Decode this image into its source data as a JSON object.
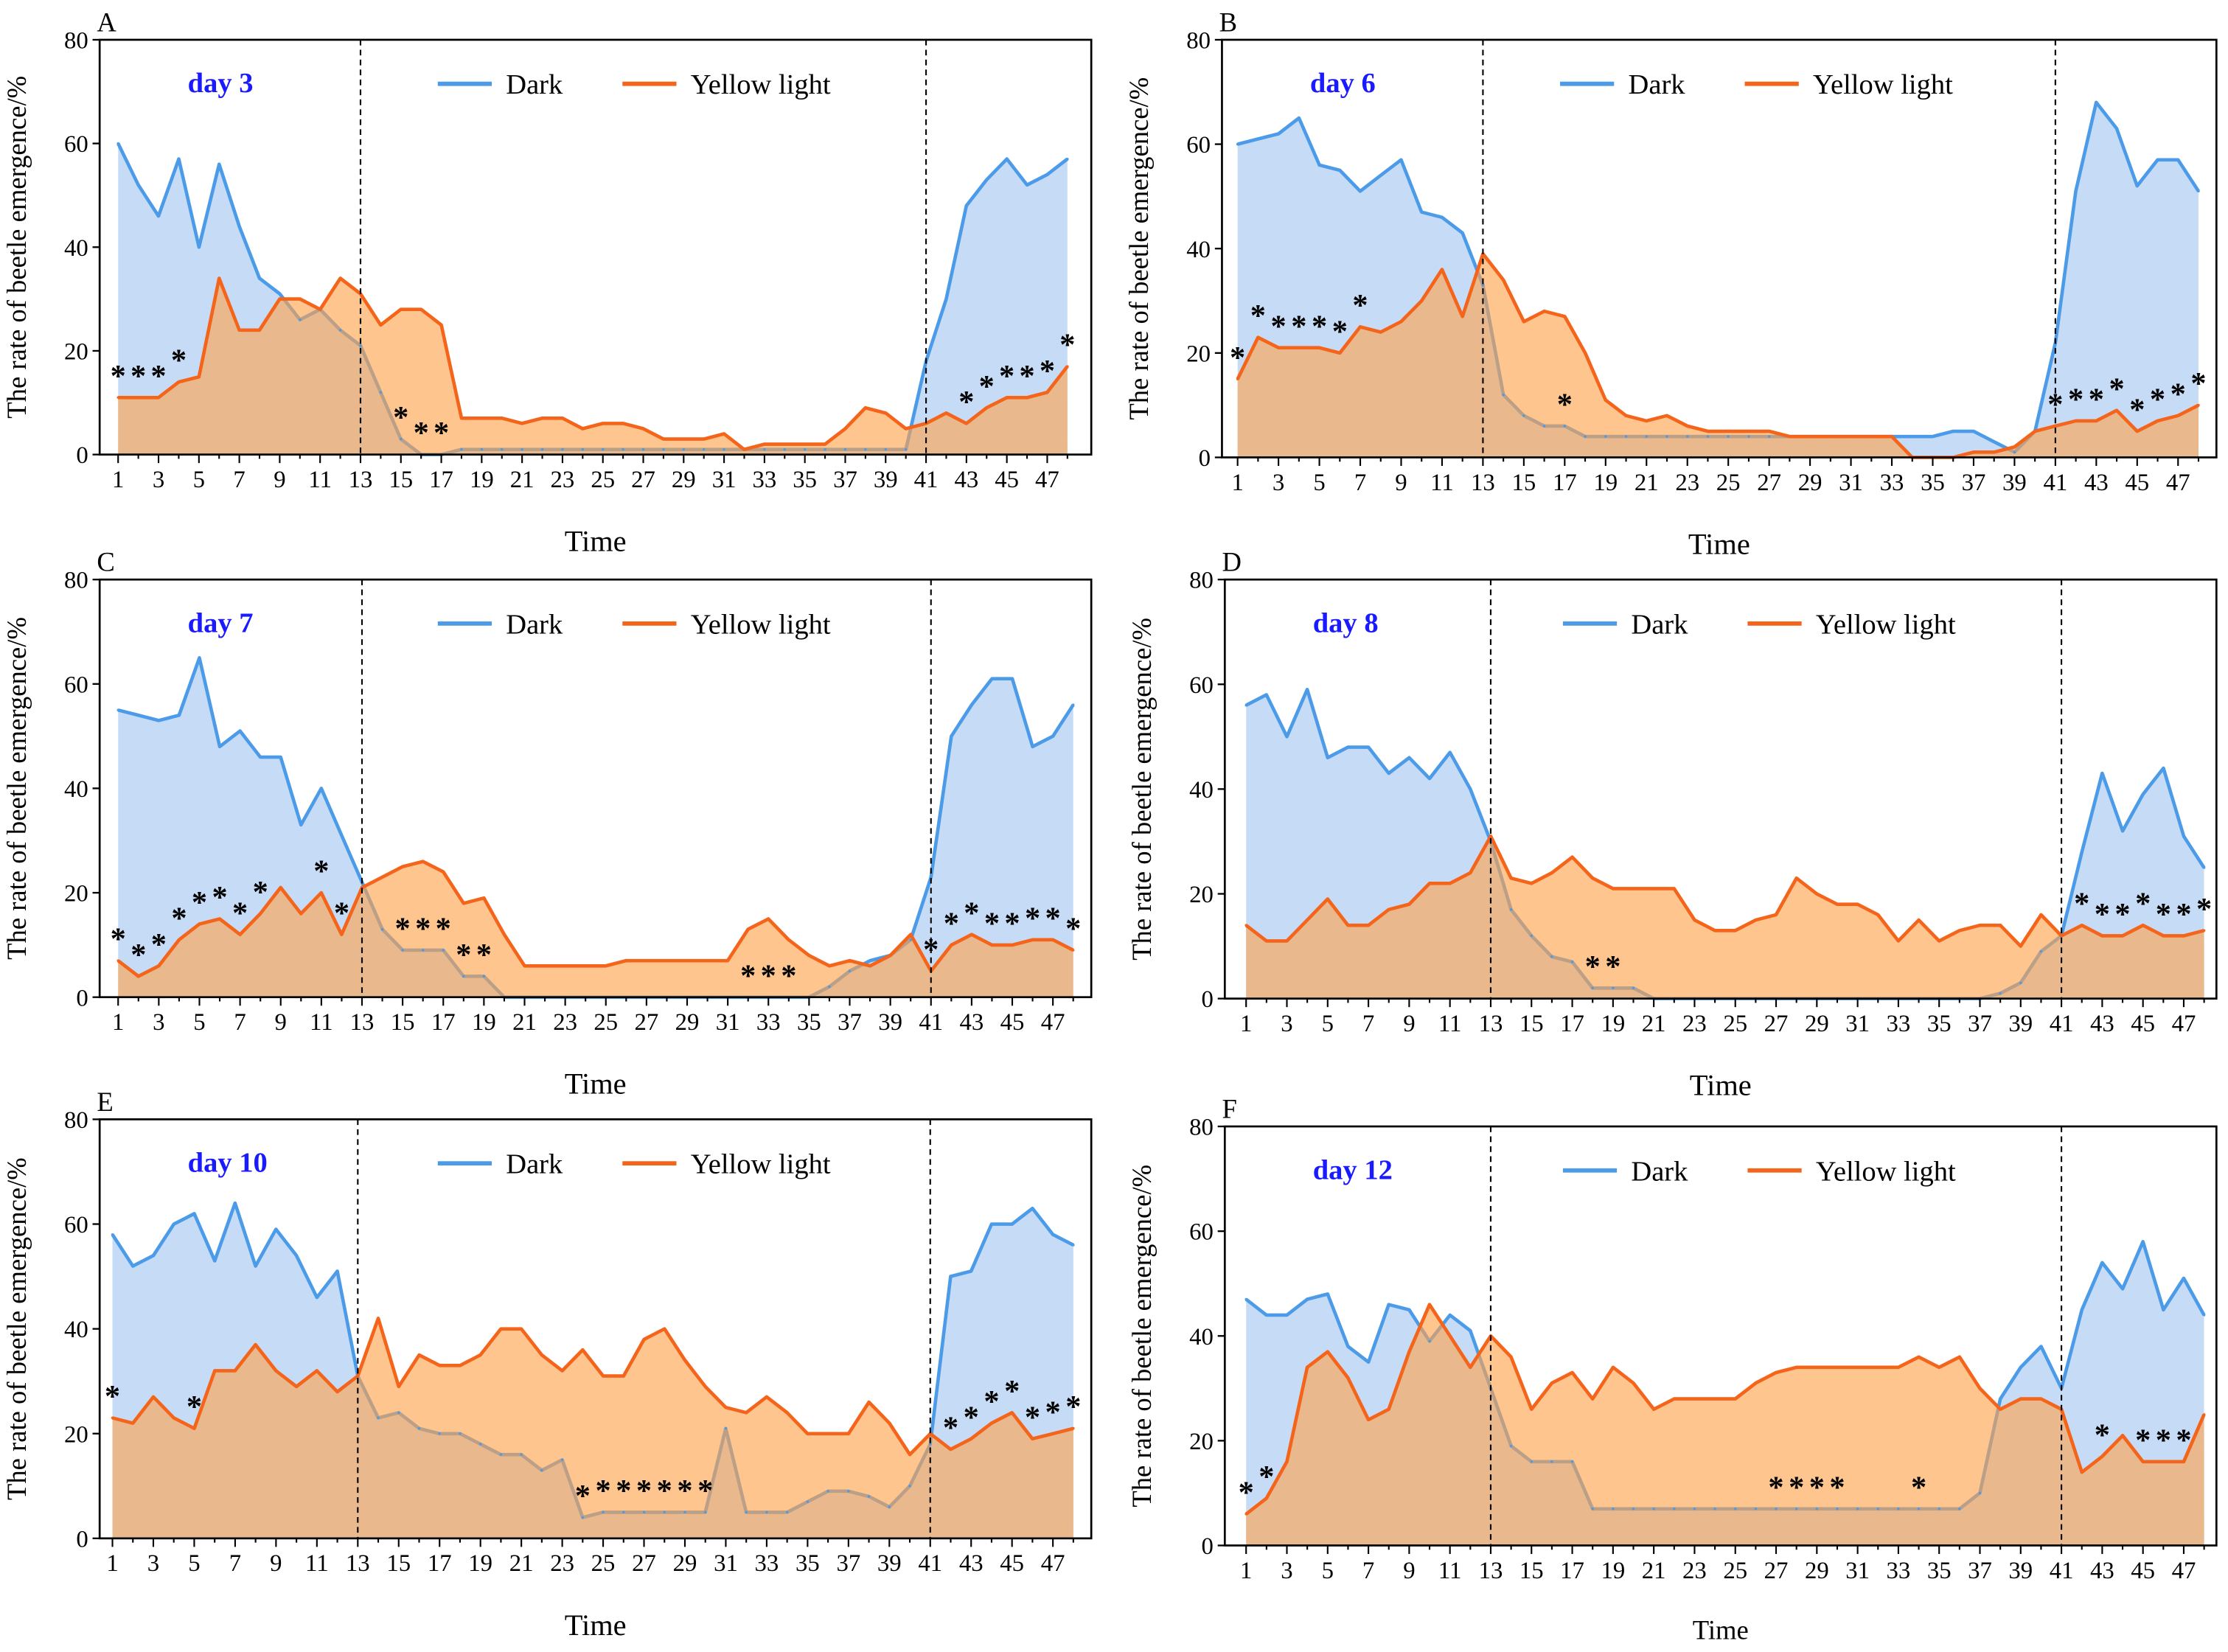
{
  "chart_data": [
    {
      "type": "area",
      "panel": "A",
      "title": "day 3",
      "xlabel": "Time",
      "ylabel": "The rate of beetle emergence/%",
      "ylim": [
        0,
        80
      ],
      "yticks": [
        0,
        20,
        40,
        60,
        80
      ],
      "xticks": [
        1,
        3,
        5,
        7,
        9,
        11,
        13,
        15,
        17,
        19,
        21,
        23,
        25,
        27,
        29,
        31,
        33,
        35,
        37,
        39,
        41,
        43,
        45,
        47
      ],
      "markers": [
        13,
        41
      ],
      "legend": "top-center",
      "series": [
        {
          "name": "Dark",
          "color": "#4c9be8",
          "values": [
            60,
            52,
            46,
            57,
            40,
            56,
            44,
            34,
            31,
            26,
            28,
            24,
            21,
            12,
            3,
            0,
            0,
            1,
            1,
            1,
            1,
            1,
            1,
            1,
            1,
            1,
            1,
            1,
            1,
            1,
            1,
            1,
            1,
            1,
            1,
            1,
            1,
            1,
            1,
            1,
            18,
            30,
            48,
            53,
            57,
            52,
            54,
            57
          ]
        },
        {
          "name": "Yellow light",
          "color": "#f4641a",
          "values": [
            11,
            11,
            11,
            14,
            15,
            34,
            24,
            24,
            30,
            30,
            28,
            34,
            31,
            25,
            28,
            28,
            25,
            7,
            7,
            7,
            6,
            7,
            7,
            5,
            6,
            6,
            5,
            3,
            3,
            3,
            4,
            1,
            2,
            2,
            2,
            2,
            5,
            9,
            8,
            5,
            6,
            8,
            6,
            9,
            11,
            11,
            12,
            17
          ]
        }
      ],
      "significant": [
        1,
        2,
        3,
        4,
        15,
        16,
        17,
        43,
        44,
        45,
        46,
        47,
        48
      ],
      "annotation": "*"
    },
    {
      "type": "area",
      "panel": "B",
      "title": "day 6",
      "xlabel": "Time",
      "ylabel": "The rate of beetle emergence/%",
      "ylim": [
        0,
        80
      ],
      "yticks": [
        0,
        20,
        40,
        60,
        80
      ],
      "xticks": [
        1,
        3,
        5,
        7,
        9,
        11,
        13,
        15,
        17,
        19,
        21,
        23,
        25,
        27,
        29,
        31,
        33,
        35,
        37,
        39,
        41,
        43,
        45,
        47
      ],
      "markers": [
        13,
        41
      ],
      "legend": "top-center",
      "series": [
        {
          "name": "Dark",
          "color": "#4c9be8",
          "values": [
            60,
            61,
            62,
            65,
            56,
            55,
            51,
            54,
            57,
            47,
            46,
            43,
            33,
            12,
            8,
            6,
            6,
            4,
            4,
            4,
            4,
            4,
            4,
            4,
            4,
            4,
            4,
            4,
            4,
            4,
            4,
            4,
            4,
            4,
            4,
            5,
            5,
            3,
            1,
            5,
            22,
            51,
            68,
            63,
            52,
            57,
            57,
            51
          ]
        },
        {
          "name": "Yellow light",
          "color": "#f4641a",
          "values": [
            15,
            23,
            21,
            21,
            21,
            20,
            25,
            24,
            26,
            30,
            36,
            27,
            39,
            34,
            26,
            28,
            27,
            20,
            11,
            8,
            7,
            8,
            6,
            5,
            5,
            5,
            5,
            4,
            4,
            4,
            4,
            4,
            4,
            0,
            0,
            0,
            1,
            1,
            2,
            5,
            6,
            7,
            7,
            9,
            5,
            7,
            8,
            10
          ]
        }
      ],
      "significant": [
        1,
        2,
        3,
        4,
        5,
        6,
        7,
        17,
        41,
        42,
        43,
        44,
        45,
        46,
        47,
        48
      ],
      "annotation": "*"
    },
    {
      "type": "area",
      "panel": "C",
      "title": "day 7",
      "xlabel": "Time",
      "ylabel": "The rate of beetle emergence/%",
      "ylim": [
        0,
        80
      ],
      "yticks": [
        0,
        20,
        40,
        60,
        80
      ],
      "xticks": [
        1,
        3,
        5,
        7,
        9,
        11,
        13,
        15,
        17,
        19,
        21,
        23,
        25,
        27,
        29,
        31,
        33,
        35,
        37,
        39,
        41,
        43,
        45,
        47
      ],
      "markers": [
        13,
        41
      ],
      "legend": "top-center",
      "series": [
        {
          "name": "Dark",
          "color": "#4c9be8",
          "values": [
            55,
            54,
            53,
            54,
            65,
            48,
            51,
            46,
            46,
            33,
            40,
            31,
            22,
            13,
            9,
            9,
            9,
            4,
            4,
            0,
            0,
            0,
            0,
            0,
            0,
            0,
            0,
            0,
            0,
            0,
            0,
            0,
            0,
            0,
            0,
            2,
            5,
            7,
            8,
            11,
            23,
            50,
            56,
            61,
            61,
            48,
            50,
            56
          ]
        },
        {
          "name": "Yellow light",
          "color": "#f4641a",
          "values": [
            7,
            4,
            6,
            11,
            14,
            15,
            12,
            16,
            21,
            16,
            20,
            12,
            21,
            23,
            25,
            26,
            24,
            18,
            19,
            12,
            6,
            6,
            6,
            6,
            6,
            7,
            7,
            7,
            7,
            7,
            7,
            13,
            15,
            11,
            8,
            6,
            7,
            6,
            8,
            12,
            5,
            10,
            12,
            10,
            10,
            11,
            11,
            9
          ]
        }
      ],
      "significant": [
        1,
        2,
        3,
        4,
        5,
        6,
        7,
        8,
        11,
        12,
        15,
        16,
        17,
        18,
        19,
        32,
        33,
        34,
        41,
        42,
        43,
        44,
        45,
        46,
        47,
        48
      ],
      "annotation": "*"
    },
    {
      "type": "area",
      "panel": "D",
      "title": "day 8",
      "xlabel": "Time",
      "ylabel": "The rate of beetle emergence/%",
      "ylim": [
        0,
        80
      ],
      "yticks": [
        0,
        20,
        40,
        60,
        80
      ],
      "xticks": [
        1,
        3,
        5,
        7,
        9,
        11,
        13,
        15,
        17,
        19,
        21,
        23,
        25,
        27,
        29,
        31,
        33,
        35,
        37,
        39,
        41,
        43,
        45,
        47
      ],
      "markers": [
        13,
        41
      ],
      "legend": "top-center",
      "series": [
        {
          "name": "Dark",
          "color": "#4c9be8",
          "values": [
            56,
            58,
            50,
            59,
            46,
            48,
            48,
            43,
            46,
            42,
            47,
            40,
            30,
            17,
            12,
            8,
            7,
            2,
            2,
            2,
            0,
            0,
            0,
            0,
            0,
            0,
            0,
            0,
            0,
            0,
            0,
            0,
            0,
            0,
            0,
            0,
            0,
            1,
            3,
            9,
            12,
            28,
            43,
            32,
            39,
            44,
            31,
            25
          ]
        },
        {
          "name": "Yellow light",
          "color": "#f4641a",
          "values": [
            14,
            11,
            11,
            15,
            19,
            14,
            14,
            17,
            18,
            22,
            22,
            24,
            31,
            23,
            22,
            24,
            27,
            23,
            21,
            21,
            21,
            21,
            15,
            13,
            13,
            15,
            16,
            23,
            20,
            18,
            18,
            16,
            11,
            15,
            11,
            13,
            14,
            14,
            10,
            16,
            12,
            14,
            12,
            12,
            14,
            12,
            12,
            13
          ]
        }
      ],
      "significant": [
        18,
        19,
        42,
        43,
        44,
        45,
        46,
        47,
        48
      ],
      "annotation": "*"
    },
    {
      "type": "area",
      "panel": "E",
      "title": "day 10",
      "xlabel": "Time",
      "ylabel": "The rate of beetle emergence/%",
      "ylim": [
        0,
        80
      ],
      "yticks": [
        0,
        20,
        40,
        60,
        80
      ],
      "xticks": [
        1,
        3,
        5,
        7,
        9,
        11,
        13,
        15,
        17,
        19,
        21,
        23,
        25,
        27,
        29,
        31,
        33,
        35,
        37,
        39,
        41,
        43,
        45,
        47
      ],
      "markers": [
        13,
        41
      ],
      "legend": "top-center",
      "series": [
        {
          "name": "Dark",
          "color": "#4c9be8",
          "values": [
            58,
            52,
            54,
            60,
            62,
            53,
            64,
            52,
            59,
            54,
            46,
            51,
            31,
            23,
            24,
            21,
            20,
            20,
            18,
            16,
            16,
            13,
            15,
            4,
            5,
            5,
            5,
            5,
            5,
            5,
            21,
            5,
            5,
            5,
            7,
            9,
            9,
            8,
            6,
            10,
            18,
            50,
            51,
            60,
            60,
            63,
            58,
            56
          ]
        },
        {
          "name": "Yellow light",
          "color": "#f4641a",
          "values": [
            23,
            22,
            27,
            23,
            21,
            32,
            32,
            37,
            32,
            29,
            32,
            28,
            31,
            42,
            29,
            35,
            33,
            33,
            35,
            40,
            40,
            35,
            32,
            36,
            31,
            31,
            38,
            40,
            34,
            29,
            25,
            24,
            27,
            24,
            20,
            20,
            20,
            26,
            22,
            16,
            20,
            17,
            19,
            22,
            24,
            19,
            20,
            21
          ]
        }
      ],
      "significant": [
        1,
        5,
        24,
        25,
        26,
        27,
        28,
        29,
        30,
        42,
        43,
        44,
        45,
        46,
        47,
        48
      ],
      "annotation": "*"
    },
    {
      "type": "area",
      "panel": "F",
      "title": "day 12",
      "xlabel": "Time",
      "ylabel": "The rate of beetle emergence/%",
      "ylim": [
        0,
        80
      ],
      "yticks": [
        0,
        20,
        40,
        60,
        80
      ],
      "xticks": [
        1,
        3,
        5,
        7,
        9,
        11,
        13,
        15,
        17,
        19,
        21,
        23,
        25,
        27,
        29,
        31,
        33,
        35,
        37,
        39,
        41,
        43,
        45,
        47
      ],
      "markers": [
        13,
        41
      ],
      "legend": "top-center",
      "series": [
        {
          "name": "Dark",
          "color": "#4c9be8",
          "values": [
            47,
            44,
            44,
            47,
            48,
            38,
            35,
            46,
            45,
            39,
            44,
            41,
            30,
            19,
            16,
            16,
            16,
            7,
            7,
            7,
            7,
            7,
            7,
            7,
            7,
            7,
            7,
            7,
            7,
            7,
            7,
            7,
            7,
            7,
            7,
            7,
            10,
            28,
            34,
            38,
            30,
            45,
            54,
            49,
            58,
            45,
            51,
            44
          ]
        },
        {
          "name": "Yellow light",
          "color": "#f4641a",
          "values": [
            6,
            9,
            16,
            34,
            37,
            32,
            24,
            26,
            37,
            46,
            40,
            34,
            40,
            36,
            26,
            31,
            33,
            28,
            34,
            31,
            26,
            28,
            28,
            28,
            28,
            31,
            33,
            34,
            34,
            34,
            34,
            34,
            34,
            36,
            34,
            36,
            30,
            26,
            28,
            28,
            26,
            14,
            17,
            21,
            16,
            16,
            16,
            25
          ]
        }
      ],
      "significant": [
        1,
        2,
        27,
        28,
        29,
        30,
        34,
        43,
        45,
        46,
        47
      ],
      "annotation": "*"
    }
  ]
}
